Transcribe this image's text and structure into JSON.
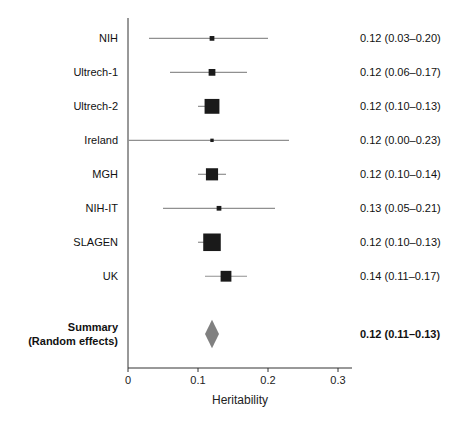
{
  "chart_data": {
    "type": "forest",
    "x_label": "Heritability",
    "categories": [
      "NIH",
      "Ultrech-1",
      "Ultrech-2",
      "Ireland",
      "MGH",
      "NIH-IT",
      "SLAGEN",
      "UK"
    ],
    "values": [
      0.12,
      0.12,
      0.12,
      0.12,
      0.12,
      0.13,
      0.12,
      0.14
    ],
    "ci_low": [
      0.03,
      0.06,
      0.1,
      0.0,
      0.1,
      0.05,
      0.1,
      0.11
    ],
    "ci_high": [
      0.2,
      0.17,
      0.13,
      0.23,
      0.14,
      0.21,
      0.13,
      0.17
    ],
    "sizes": [
      3.5,
      5,
      11,
      2.5,
      9,
      3.5,
      13,
      8
    ],
    "value_labels": [
      "0.12 (0.03–0.20)",
      "0.12 (0.06–0.17)",
      "0.12 (0.10–0.13)",
      "0.12 (0.00–0.23)",
      "0.12 (0.10–0.14)",
      "0.13 (0.05–0.21)",
      "0.12 (0.10–0.13)",
      "0.14 (0.11–0.17)"
    ],
    "color": "#1a1a1a",
    "summary": {
      "labels": [
        "Summary",
        "(Random effects)"
      ],
      "value": 0.12,
      "ci_low": 0.11,
      "ci_high": 0.13,
      "value_label": "0.12 (0.11–0.13)",
      "color": "#808080"
    },
    "xlim": [
      0,
      0.32
    ],
    "xticks": [
      0,
      0.1,
      0.2,
      0.3
    ],
    "grid": false
  }
}
